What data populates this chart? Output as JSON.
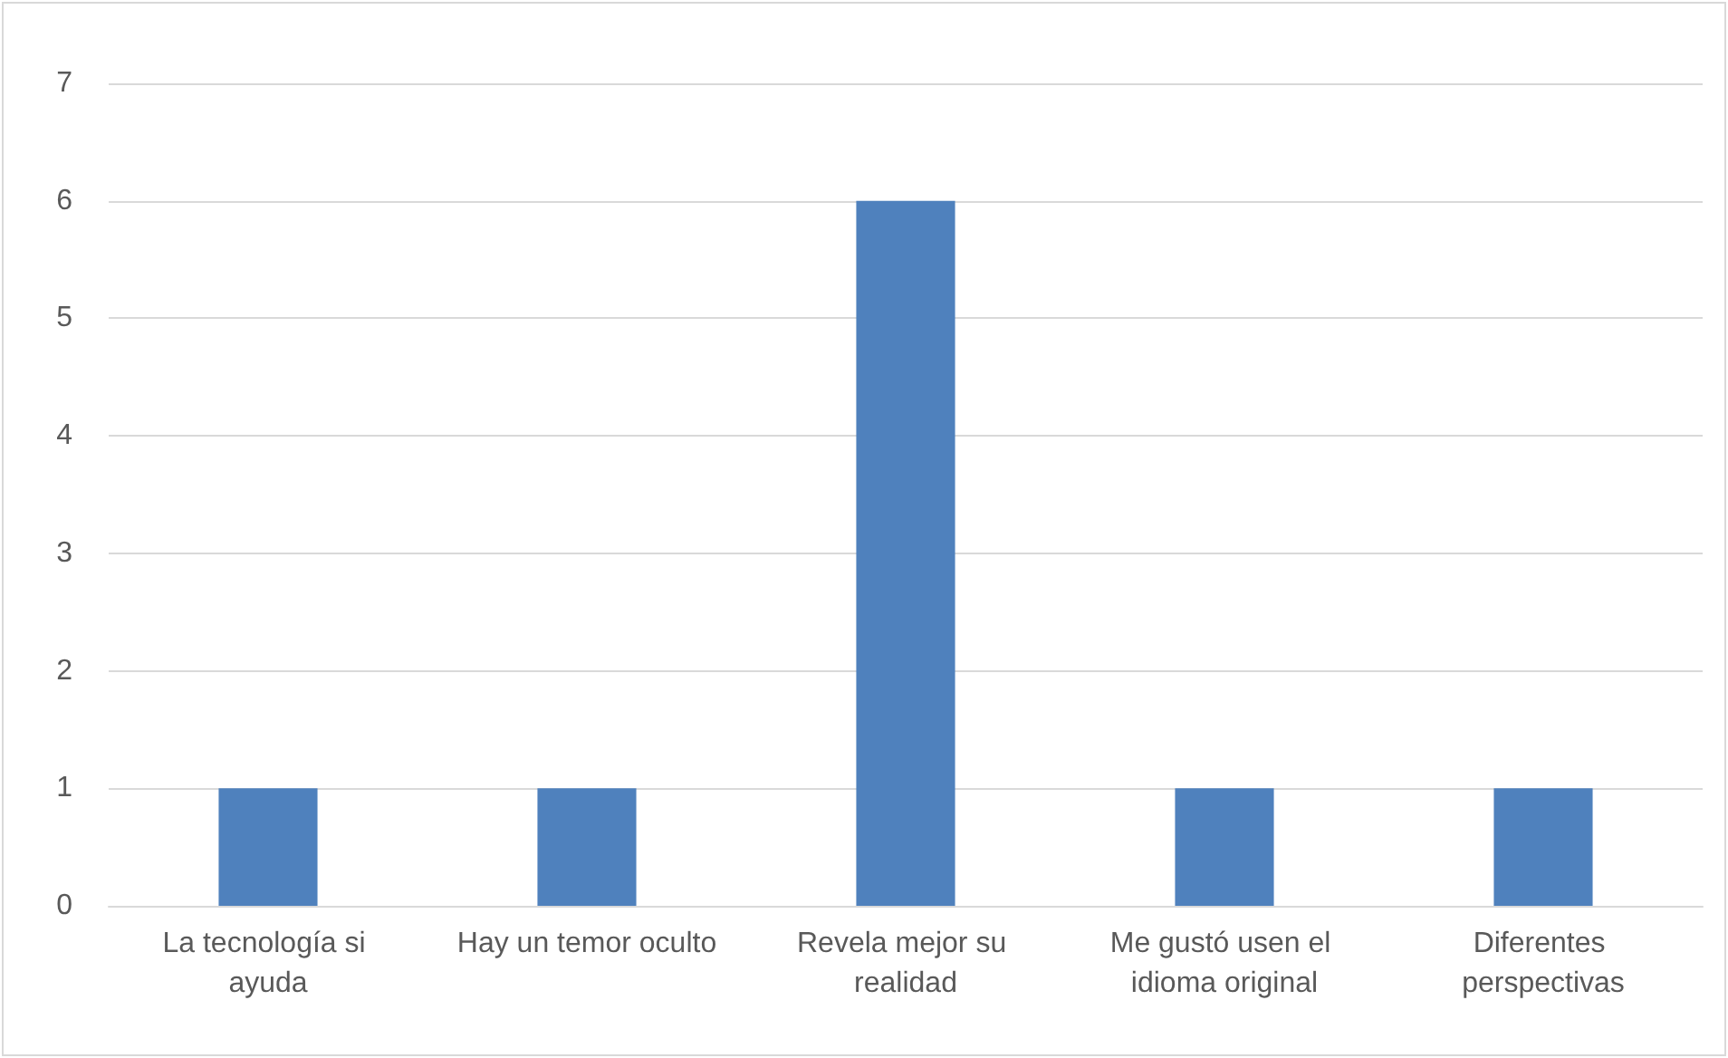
{
  "chart_data": {
    "type": "bar",
    "categories": [
      "La tecnología si ayuda",
      "Hay un temor oculto",
      "Revela mejor su realidad",
      "Me gustó usen el idioma original",
      "Diferentes perspectivas"
    ],
    "values": [
      1,
      1,
      6,
      1,
      1
    ],
    "color": "#4f81bd",
    "ylim": [
      0,
      7
    ],
    "yticks": [
      0,
      1,
      2,
      3,
      4,
      5,
      6,
      7
    ],
    "grid": "y"
  }
}
